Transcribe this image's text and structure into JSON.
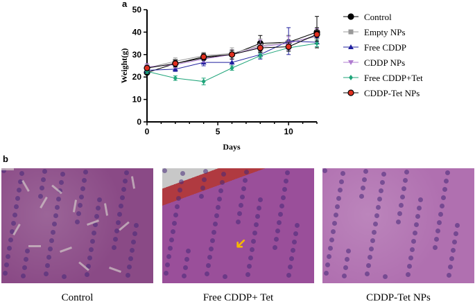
{
  "panel_labels": {
    "a": "a",
    "b": "b"
  },
  "chart_data": {
    "type": "line",
    "xlabel": "Days",
    "ylabel": "Weight(g)",
    "xlim": [
      0,
      12
    ],
    "ylim": [
      0,
      50
    ],
    "xticks": [
      0,
      5,
      10
    ],
    "yticks": [
      0,
      10,
      20,
      30,
      40,
      50
    ],
    "x": [
      0,
      2,
      4,
      6,
      8,
      10,
      12
    ],
    "legend_placement": "right",
    "series": [
      {
        "name": "Control",
        "color": "#000000",
        "marker": "circle",
        "values": [
          22,
          26,
          28.5,
          30,
          35,
          35.5,
          40
        ],
        "errors": [
          1,
          1.5,
          2,
          2,
          3.5,
          3,
          7
        ]
      },
      {
        "name": "Empty NPs",
        "color": "#999999",
        "marker": "square",
        "values": [
          24,
          27,
          29.5,
          30.5,
          34,
          35.5,
          38
        ],
        "errors": [
          1.5,
          1.5,
          1.5,
          2.5,
          3,
          3,
          3
        ]
      },
      {
        "name": "Free CDDP",
        "color": "#1f1f9e",
        "marker": "triangle-up",
        "values": [
          23,
          23.5,
          26.5,
          26.5,
          30,
          36,
          35.5
        ],
        "errors": [
          1,
          1,
          1.5,
          1.5,
          2,
          6,
          2
        ]
      },
      {
        "name": "CDDP NPs",
        "color": "#b07cd0",
        "marker": "triangle-down",
        "values": [
          24.5,
          25.5,
          28,
          30,
          33.5,
          35,
          38.5
        ],
        "errors": [
          1.5,
          1.5,
          1.5,
          2,
          3,
          3,
          3
        ]
      },
      {
        "name": "Free CDDP+Tet",
        "color": "#1fa57a",
        "marker": "diamond",
        "values": [
          22.5,
          19.5,
          18,
          24,
          29.5,
          33,
          35
        ],
        "errors": [
          1,
          1,
          1.5,
          1,
          1,
          1.5,
          1.5
        ]
      },
      {
        "name": "CDDP-Tet NPs",
        "color": "#000000",
        "fill": "#e03020",
        "marker": "circle",
        "values": [
          24,
          26,
          29,
          30,
          33,
          33.5,
          39
        ],
        "errors": [
          1,
          1.5,
          1.5,
          2,
          2,
          2,
          3
        ]
      }
    ]
  },
  "histology": [
    {
      "caption": "Control",
      "tint": "#8a4a86"
    },
    {
      "caption": "Free CDDP+ Tet",
      "tint": "#9a4f9a"
    },
    {
      "caption": "CDDP-Tet NPs",
      "tint": "#b070b0"
    }
  ]
}
